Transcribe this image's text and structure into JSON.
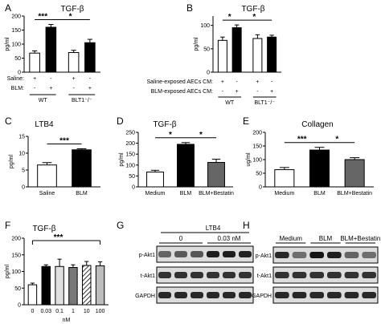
{
  "chart_data": [
    {
      "panel_letter": "A",
      "type": "bar",
      "title": "TGF-β",
      "ylabel": "pg/ml",
      "ylim": [
        0,
        200
      ],
      "yticks": [
        0,
        50,
        100,
        150,
        200
      ],
      "row_labels": [
        "Saline:",
        "BLM:"
      ],
      "columns": [
        [
          "+",
          "-"
        ],
        [
          "-",
          "+"
        ],
        [
          "+",
          "-"
        ],
        [
          "-",
          "+"
        ]
      ],
      "groups": [
        "WT",
        "BLT1⁻/⁻"
      ],
      "values": [
        68,
        160,
        70,
        105
      ],
      "errors": [
        8,
        10,
        8,
        12
      ],
      "fills": [
        "#ffffff",
        "#000000",
        "#ffffff",
        "#000000"
      ],
      "sig": [
        {
          "from": 0,
          "to": 1,
          "label": "***"
        },
        {
          "from": 1,
          "to": 3,
          "label": "*"
        }
      ]
    },
    {
      "panel_letter": "B",
      "type": "bar",
      "title": "TGF-β",
      "ylabel": "pg/ml",
      "ylim": [
        0,
        120
      ],
      "yticks": [
        0,
        50,
        100
      ],
      "row_labels": [
        "Saline-exposed AECs CM:",
        "BLM-exposed AECs CM:"
      ],
      "columns": [
        [
          "+",
          "-"
        ],
        [
          "-",
          "+"
        ],
        [
          "+",
          "-"
        ],
        [
          "-",
          "+"
        ]
      ],
      "groups": [
        "WT",
        "BLT1⁻/⁻"
      ],
      "values": [
        68,
        95,
        72,
        75
      ],
      "errors": [
        7,
        6,
        8,
        4
      ],
      "fills": [
        "#ffffff",
        "#000000",
        "#ffffff",
        "#000000"
      ],
      "sig": [
        {
          "from": 0,
          "to": 1,
          "label": "*"
        },
        {
          "from": 1,
          "to": 3,
          "label": "*"
        }
      ]
    },
    {
      "panel_letter": "C",
      "type": "bar",
      "title": "LTB4",
      "ylabel": "pg/ml",
      "ylim": [
        0,
        15
      ],
      "yticks": [
        0,
        5,
        10,
        15
      ],
      "categories": [
        "Saline",
        "BLM"
      ],
      "values": [
        6.5,
        11
      ],
      "errors": [
        0.7,
        0.3
      ],
      "fills": [
        "#ffffff",
        "#000000"
      ],
      "sig": [
        {
          "from": 0,
          "to": 1,
          "label": "***"
        }
      ]
    },
    {
      "panel_letter": "D",
      "type": "bar",
      "title": "TGF-β",
      "ylabel": "pg/ml",
      "ylim": [
        0,
        250
      ],
      "yticks": [
        0,
        50,
        100,
        150,
        200,
        250
      ],
      "categories": [
        "Medium",
        "BLM",
        "BLM+Bestatin"
      ],
      "values": [
        68,
        195,
        112
      ],
      "errors": [
        8,
        8,
        15
      ],
      "fills": [
        "#ffffff",
        "#000000",
        "#666666"
      ],
      "sig": [
        {
          "from": 0,
          "to": 1,
          "label": "*"
        },
        {
          "from": 1,
          "to": 2,
          "label": "*"
        }
      ]
    },
    {
      "panel_letter": "E",
      "type": "bar",
      "title": "Collagen",
      "ylabel": "ug/ml",
      "ylim": [
        0,
        200
      ],
      "yticks": [
        0,
        50,
        100,
        150,
        200
      ],
      "categories": [
        "Medium",
        "BLM",
        "BLM+Bestatin"
      ],
      "values": [
        63,
        135,
        100
      ],
      "errors": [
        8,
        10,
        7
      ],
      "fills": [
        "#ffffff",
        "#000000",
        "#666666"
      ],
      "sig": [
        {
          "from": 0,
          "to": 1,
          "label": "***"
        },
        {
          "from": 1,
          "to": 2,
          "label": "*"
        }
      ]
    },
    {
      "panel_letter": "F",
      "type": "bar",
      "title": "TGF-β",
      "ylabel": "pg/ml",
      "xlabel": "nM",
      "ylim": [
        0,
        200
      ],
      "yticks": [
        0,
        50,
        100,
        150,
        200
      ],
      "categories": [
        "0",
        "0.03",
        "0.1",
        "1",
        "10",
        "100"
      ],
      "values": [
        60,
        115,
        115,
        112,
        118,
        117
      ],
      "errors": [
        5,
        5,
        22,
        8,
        12,
        12
      ],
      "fills": [
        "#ffffff",
        "#000000",
        "#e0e0e0",
        "#777777",
        "hatch",
        "#bdbdbd"
      ],
      "sig_label": "***"
    }
  ],
  "blots": [
    {
      "panel_letter": "G",
      "header": "LTB4",
      "groups": [
        "0",
        "0.03 nM"
      ],
      "lanes": 6,
      "rows": [
        {
          "label": "p-Akt1",
          "intensities": [
            0.55,
            0.6,
            0.62,
            0.9,
            0.9,
            0.88
          ]
        },
        {
          "label": "t-Akt1",
          "intensities": [
            0.8,
            0.8,
            0.8,
            0.8,
            0.8,
            0.8
          ]
        },
        {
          "label": "GAPDH",
          "intensities": [
            0.85,
            0.85,
            0.85,
            0.85,
            0.85,
            0.85
          ]
        }
      ]
    },
    {
      "panel_letter": "H",
      "groups": [
        "Medium",
        "BLM",
        "BLM+Bestatin"
      ],
      "lanes": 6,
      "rows": [
        {
          "label": "p-Akt1",
          "intensities": [
            0.85,
            0.5,
            0.95,
            0.9,
            0.55,
            0.5
          ]
        },
        {
          "label": "t-Akt1",
          "intensities": [
            0.8,
            0.8,
            0.8,
            0.8,
            0.8,
            0.8
          ]
        },
        {
          "label": "GAPDH",
          "intensities": [
            0.85,
            0.85,
            0.85,
            0.85,
            0.85,
            0.85
          ]
        }
      ]
    }
  ]
}
